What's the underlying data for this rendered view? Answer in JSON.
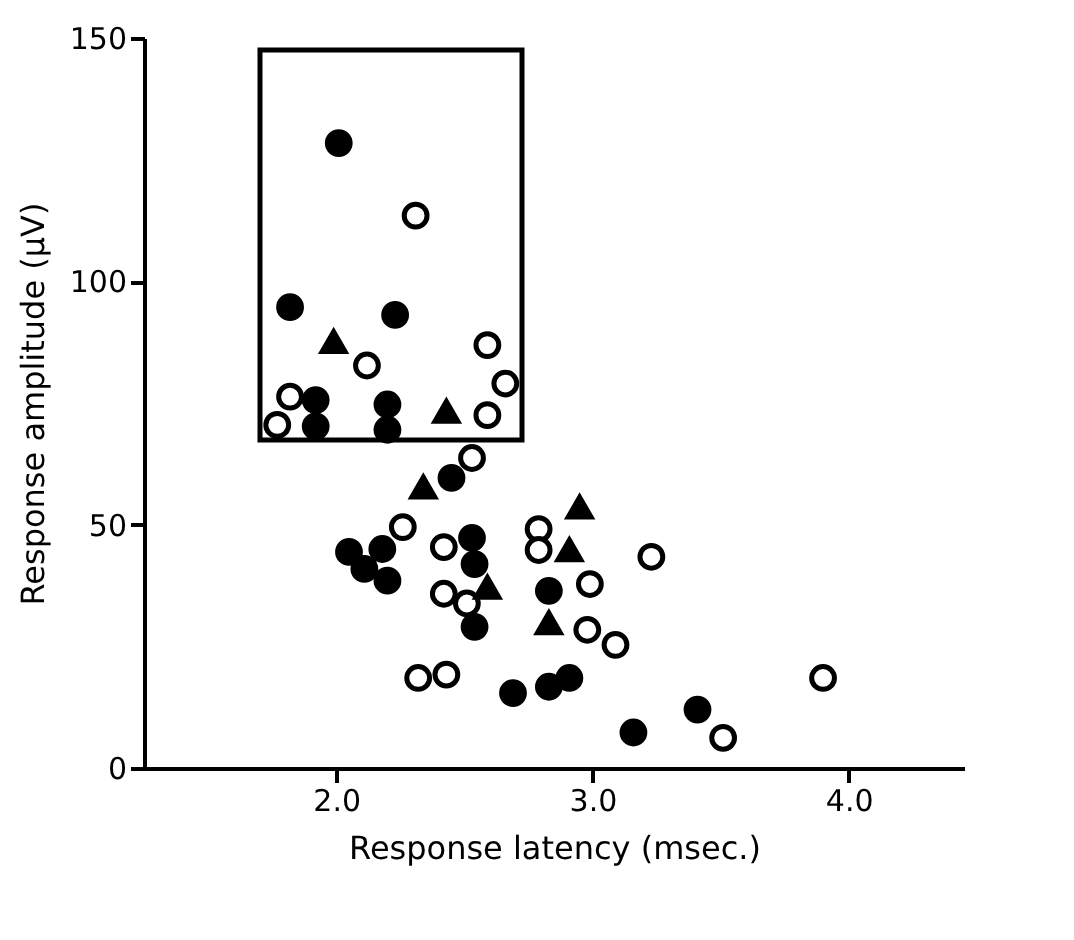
{
  "chart_data": {
    "type": "scatter",
    "xlabel": "Response latency (msec.)",
    "ylabel": "Response amplitude (μV)",
    "xlim": [
      1.25,
      4.45
    ],
    "xticks": [
      {
        "value": 2,
        "label": "2.0"
      },
      {
        "value": 3,
        "label": "3.0"
      },
      {
        "value": 4,
        "label": "4.0"
      }
    ],
    "ylim": [
      0,
      150
    ],
    "yticks": [
      0,
      50,
      100,
      150
    ],
    "grid": false,
    "series": [
      {
        "color": "#000000",
        "marker": "circle",
        "x": [
          2.01,
          1.82,
          2.23,
          1.92,
          1.92,
          2.2,
          2.2,
          2.45,
          2.05,
          2.18,
          2.11,
          2.2,
          2.53,
          2.54,
          2.54,
          2.69,
          2.83,
          2.91,
          2.83,
          3.16,
          3.41
        ],
        "values": [
          128.4,
          94.7,
          93.1,
          75.6,
          70.2,
          74.7,
          69.5,
          59.6,
          44.4,
          45.0,
          40.9,
          38.5,
          47.3,
          41.9,
          29.0,
          15.4,
          16.7,
          18.5,
          36.4,
          7.3,
          12.0
        ]
      },
      {
        "color": "#ffffff",
        "marker": "circle",
        "x": [
          2.31,
          2.12,
          2.59,
          2.66,
          2.59,
          1.82,
          1.77,
          2.53,
          2.26,
          2.42,
          2.42,
          2.51,
          2.32,
          2.43,
          2.79,
          2.79,
          3.23,
          2.99,
          2.98,
          3.09,
          3.51,
          3.9
        ],
        "values": [
          113.5,
          82.7,
          86.9,
          79.0,
          72.5,
          76.3,
          70.5,
          63.7,
          49.5,
          45.4,
          35.8,
          33.8,
          18.5,
          19.2,
          49.1,
          44.8,
          43.4,
          37.8,
          28.4,
          25.3,
          6.2,
          18.5
        ]
      },
      {
        "color": "#000000",
        "marker": "triangle",
        "x": [
          1.99,
          2.43,
          2.34,
          2.59,
          2.83,
          2.95,
          2.91
        ],
        "values": [
          87.6,
          73.3,
          57.7,
          37.1,
          29.8,
          53.6,
          44.8
        ]
      }
    ]
  }
}
